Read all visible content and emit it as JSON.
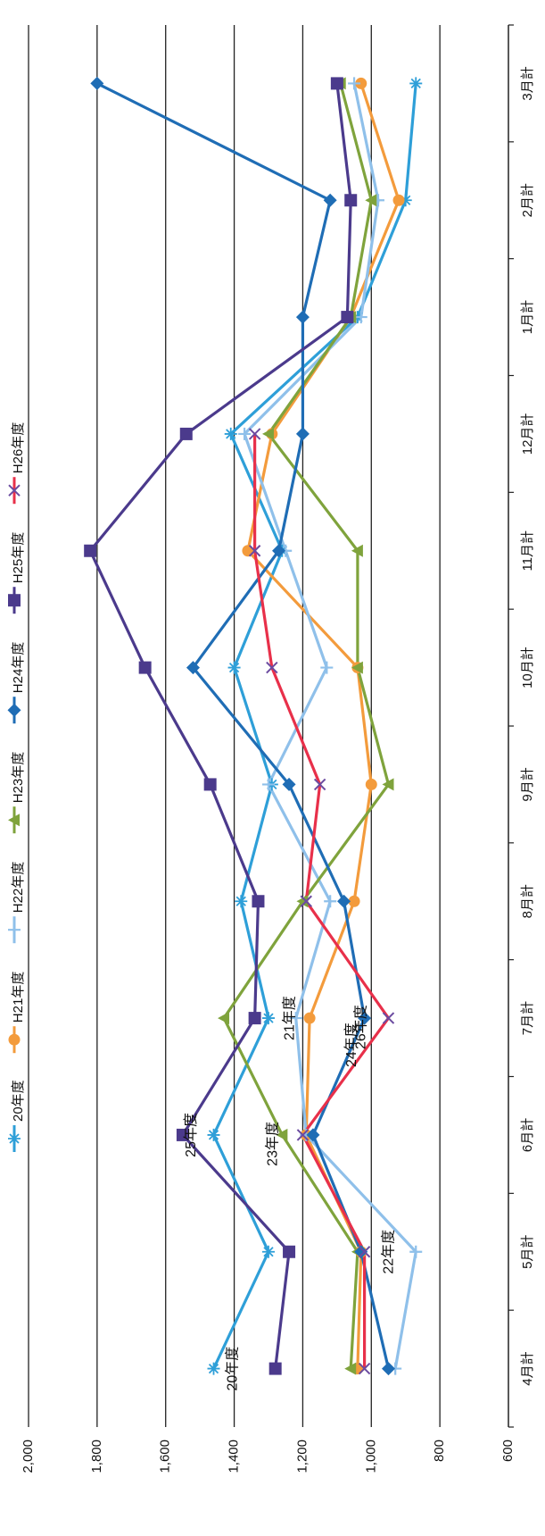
{
  "chart_data": {
    "type": "line",
    "orientation": "rotated-90-clockwise",
    "categories": [
      "4月計",
      "5月計",
      "6月計",
      "7月計",
      "8月計",
      "9月計",
      "10月計",
      "11月計",
      "12月計",
      "1月計",
      "2月計",
      "3月計"
    ],
    "ylim": [
      600,
      2000
    ],
    "yticks": [
      "600",
      "800",
      "1,000",
      "1,200",
      "1,400",
      "1,600",
      "1,800",
      "2,000"
    ],
    "ytick_values": [
      600,
      800,
      1000,
      1200,
      1400,
      1600,
      1800,
      2000
    ],
    "grid": true,
    "legend_position": "top",
    "series": [
      {
        "name": "20年度",
        "color": "#2E9FD8",
        "marker": "star",
        "values": [
          1460,
          1300,
          1460,
          1300,
          1380,
          1290,
          1400,
          1260,
          1410,
          1040,
          900,
          870
        ]
      },
      {
        "name": "H21年度",
        "color": "#F39B3C",
        "marker": "circle",
        "values": [
          1040,
          1030,
          1190,
          1180,
          1050,
          1000,
          1040,
          1360,
          1290,
          1060,
          920,
          1030
        ]
      },
      {
        "name": "H22年度",
        "color": "#8FC0EA",
        "marker": "plus",
        "values": [
          930,
          870,
          1190,
          1220,
          1120,
          1300,
          1130,
          1250,
          1370,
          1030,
          980,
          1050
        ]
      },
      {
        "name": "H23年度",
        "color": "#7FA33C",
        "marker": "triangle",
        "values": [
          1060,
          1040,
          1260,
          1430,
          1200,
          950,
          1040,
          1040,
          1300,
          1060,
          1000,
          1090
        ]
      },
      {
        "name": "H24年度",
        "color": "#1F6DB5",
        "marker": "diamond",
        "values": [
          950,
          1030,
          1170,
          1020,
          1080,
          1240,
          1520,
          1270,
          1200,
          1200,
          1120,
          1800
        ]
      },
      {
        "name": "H25年度",
        "color": "#4B3A8C",
        "marker": "square",
        "values": [
          1280,
          1240,
          1550,
          1340,
          1330,
          1470,
          1660,
          1820,
          1540,
          1070,
          1060,
          1100
        ]
      },
      {
        "name": "H26年度",
        "color": "#E8304A",
        "marker": "x",
        "values": [
          1020,
          1020,
          1200,
          950,
          1190,
          1150,
          1290,
          1340,
          1340,
          null,
          null,
          null
        ]
      }
    ],
    "annotations": [
      {
        "text": "20年度",
        "category": "4月計",
        "value": 1460
      },
      {
        "text": "22年度",
        "category": "5月計",
        "value": 870
      },
      {
        "text": "25年度",
        "category": "6月計",
        "value": 1550
      },
      {
        "text": "23年度",
        "category": "6月計",
        "value": 1260
      },
      {
        "text": "21年度",
        "category": "7月計",
        "value": 1180
      },
      {
        "text": "24年度",
        "category": "7月計",
        "value": 1020
      },
      {
        "text": "26年度",
        "category": "7月計",
        "value": 950
      }
    ]
  }
}
